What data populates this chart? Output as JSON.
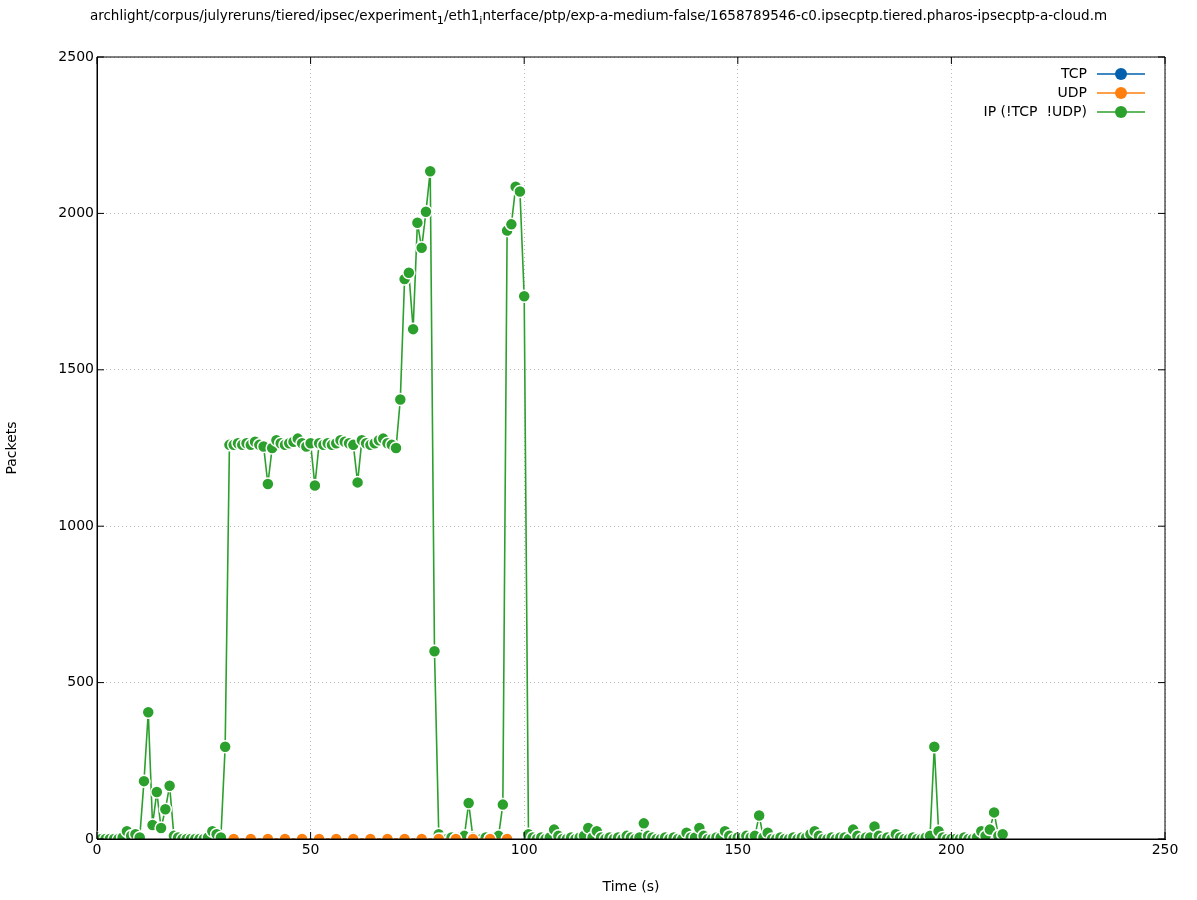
{
  "chart_data": {
    "type": "line",
    "title": "archlight/corpus/julyreruns/tiered/ipsec/experiment$_{1}$/eth1$_{i}$nterface/ptp/exp-a-medium-false/1658789546-c0.ipsecptp.tiered.pharos-ipsecptp-a-cloud.m",
    "xlabel": "Time (s)",
    "ylabel": "Packets",
    "xlim": [
      0,
      250
    ],
    "xticks": [
      0,
      50,
      100,
      150,
      200,
      250
    ],
    "ylim": [
      0,
      2500
    ],
    "yticks": [
      0,
      500,
      1000,
      1500,
      2000,
      2500
    ],
    "grid": true,
    "legend": "top right",
    "marker": "circle",
    "line_style": "solid",
    "series": [
      {
        "name": "TCP",
        "color": "#0060ad"
      },
      {
        "name": "UDP",
        "color": "#ff7f0e",
        "x": [
          32,
          36,
          40,
          44,
          48,
          52,
          56,
          60,
          64,
          68,
          72,
          76,
          80,
          84,
          88,
          92,
          96
        ],
        "values": [
          0,
          0,
          0,
          0,
          0,
          0,
          0,
          0,
          0,
          0,
          0,
          0,
          0,
          0,
          0,
          0,
          0
        ]
      },
      {
        "name": "IP (!TCP  !UDP)",
        "color": "#2ca02c",
        "x": [
          0,
          1,
          2,
          3,
          4,
          5,
          6,
          7,
          8,
          9,
          10,
          11,
          12,
          13,
          14,
          15,
          16,
          17,
          18,
          19,
          20,
          21,
          22,
          23,
          24,
          25,
          26,
          27,
          28,
          29,
          30,
          31,
          32,
          33,
          34,
          35,
          36,
          37,
          38,
          39,
          40,
          41,
          42,
          43,
          44,
          45,
          46,
          47,
          48,
          49,
          50,
          51,
          52,
          53,
          54,
          55,
          56,
          57,
          58,
          59,
          60,
          61,
          62,
          63,
          64,
          65,
          66,
          67,
          68,
          69,
          70,
          71,
          72,
          73,
          74,
          75,
          76,
          77,
          78,
          79,
          80,
          81,
          82,
          83,
          84,
          85,
          86,
          87,
          88,
          89,
          90,
          91,
          92,
          93,
          94,
          95,
          96,
          97,
          98,
          99,
          100,
          101,
          102,
          103,
          104,
          105,
          106,
          107,
          108,
          109,
          110,
          111,
          112,
          113,
          114,
          115,
          116,
          117,
          118,
          119,
          120,
          121,
          122,
          123,
          124,
          125,
          126,
          127,
          128,
          129,
          130,
          131,
          132,
          133,
          134,
          135,
          136,
          137,
          138,
          139,
          140,
          141,
          142,
          143,
          144,
          145,
          146,
          147,
          148,
          149,
          150,
          151,
          152,
          153,
          154,
          155,
          156,
          157,
          158,
          159,
          160,
          161,
          162,
          163,
          164,
          165,
          166,
          167,
          168,
          169,
          170,
          171,
          172,
          173,
          174,
          175,
          176,
          177,
          178,
          179,
          180,
          181,
          182,
          183,
          184,
          185,
          186,
          187,
          188,
          189,
          190,
          191,
          192,
          193,
          194,
          195,
          196,
          197,
          198,
          199,
          200,
          201,
          202,
          203,
          204,
          205,
          206,
          207,
          208,
          209,
          210,
          211,
          212
        ],
        "values": [
          5,
          0,
          0,
          0,
          0,
          0,
          5,
          25,
          10,
          15,
          5,
          185,
          405,
          45,
          150,
          35,
          95,
          170,
          10,
          5,
          0,
          0,
          0,
          0,
          0,
          0,
          5,
          25,
          15,
          5,
          295,
          1260,
          1260,
          1265,
          1260,
          1265,
          1260,
          1270,
          1260,
          1255,
          1135,
          1250,
          1275,
          1265,
          1260,
          1265,
          1270,
          1280,
          1265,
          1255,
          1265,
          1130,
          1265,
          1260,
          1265,
          1260,
          1265,
          1275,
          1270,
          1265,
          1260,
          1140,
          1275,
          1265,
          1260,
          1265,
          1275,
          1280,
          1265,
          1260,
          1250,
          1405,
          1790,
          1810,
          1630,
          1970,
          1890,
          2005,
          2135,
          600,
          15,
          0,
          0,
          5,
          0,
          5,
          10,
          115,
          5,
          0,
          0,
          5,
          0,
          0,
          10,
          110,
          1945,
          1965,
          2085,
          2070,
          1735,
          15,
          5,
          0,
          5,
          0,
          5,
          30,
          10,
          0,
          0,
          5,
          0,
          5,
          10,
          35,
          5,
          25,
          5,
          0,
          5,
          0,
          5,
          0,
          10,
          5,
          0,
          5,
          50,
          10,
          5,
          0,
          0,
          5,
          0,
          5,
          0,
          0,
          20,
          5,
          5,
          35,
          10,
          0,
          0,
          5,
          5,
          25,
          10,
          0,
          5,
          5,
          10,
          5,
          10,
          75,
          5,
          20,
          0,
          0,
          5,
          0,
          0,
          5,
          0,
          5,
          5,
          15,
          25,
          10,
          0,
          0,
          5,
          0,
          5,
          5,
          0,
          30,
          10,
          0,
          5,
          5,
          40,
          10,
          0,
          5,
          0,
          15,
          5,
          0,
          0,
          5,
          0,
          0,
          5,
          10,
          295,
          25,
          5,
          0,
          0,
          0,
          0,
          5,
          0,
          0,
          5,
          25,
          10,
          30,
          85,
          10,
          15
        ]
      }
    ]
  }
}
